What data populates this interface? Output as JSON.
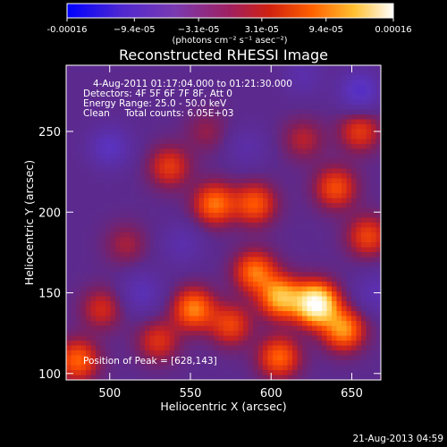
{
  "chart_data": {
    "type": "heatmap",
    "title": "Reconstructed RHESSI Image",
    "xlabel": "Heliocentric X (arcsec)",
    "ylabel": "Heliocentric Y (arcsec)",
    "xlim": [
      473,
      668
    ],
    "ylim": [
      96,
      291
    ],
    "x_ticks": [
      500,
      550,
      600,
      650
    ],
    "y_ticks": [
      100,
      150,
      200,
      250
    ],
    "colorbar": {
      "range": [
        -0.00016,
        0.00016
      ],
      "tick_values": [
        -0.00016,
        -9.4e-05,
        -3.1e-05,
        3.1e-05,
        9.4e-05,
        0.00016
      ],
      "tick_labels": [
        "-0.00016",
        "−9.4e-05",
        "−3.1e-05",
        "3.1e-05",
        "9.4e-05",
        "0.00016"
      ],
      "unit_label": "(photons cm⁻² s⁻¹ asec⁻²)"
    },
    "annotations": [
      "4-Aug-2011 01:17:04.000 to 01:21:30.000",
      "Detectors: 4F 5F 6F 7F 8F, Att 0",
      "Energy Range: 25.0 - 50.0 keV",
      "Clean     Total counts: 6.05E+03"
    ],
    "peak_label": "Position of Peak = [628,143]",
    "peak": [
      628,
      143
    ],
    "sources": [
      {
        "x": 628,
        "y": 143,
        "value": 0.00016
      },
      {
        "x": 606,
        "y": 147,
        "value": 0.000105
      },
      {
        "x": 645,
        "y": 127,
        "value": 9e-05
      },
      {
        "x": 590,
        "y": 163,
        "value": 8e-05
      },
      {
        "x": 552,
        "y": 140,
        "value": 8.5e-05
      },
      {
        "x": 565,
        "y": 205,
        "value": 8e-05
      },
      {
        "x": 590,
        "y": 205,
        "value": 7e-05
      },
      {
        "x": 605,
        "y": 110,
        "value": 7.5e-05
      },
      {
        "x": 640,
        "y": 215,
        "value": 6.5e-05
      },
      {
        "x": 660,
        "y": 185,
        "value": 6e-05
      },
      {
        "x": 655,
        "y": 250,
        "value": 5.5e-05
      },
      {
        "x": 537,
        "y": 228,
        "value": 5.5e-05
      },
      {
        "x": 530,
        "y": 120,
        "value": 5e-05
      },
      {
        "x": 575,
        "y": 130,
        "value": 6e-05
      },
      {
        "x": 480,
        "y": 108,
        "value": 7.5e-05
      },
      {
        "x": 495,
        "y": 140,
        "value": 4.5e-05
      },
      {
        "x": 510,
        "y": 180,
        "value": 3e-05
      },
      {
        "x": 560,
        "y": 250,
        "value": 2.5e-05
      },
      {
        "x": 620,
        "y": 245,
        "value": 3.5e-05
      },
      {
        "x": 500,
        "y": 240,
        "value": -5e-05
      },
      {
        "x": 520,
        "y": 150,
        "value": -4e-05
      },
      {
        "x": 655,
        "y": 275,
        "value": -6e-05
      },
      {
        "x": 620,
        "y": 285,
        "value": -3e-05
      },
      {
        "x": 545,
        "y": 180,
        "value": -3e-05
      },
      {
        "x": 665,
        "y": 150,
        "value": -3.5e-05
      },
      {
        "x": 585,
        "y": 240,
        "value": -2.5e-05
      }
    ],
    "colors": [
      "#000000",
      "#0000ff",
      "#7040c0",
      "#5a2a8e",
      "#c82020",
      "#ff5000",
      "#ffb020",
      "#ffffff"
    ]
  },
  "footer": {
    "timestamp": "21-Aug-2013 04:59"
  }
}
